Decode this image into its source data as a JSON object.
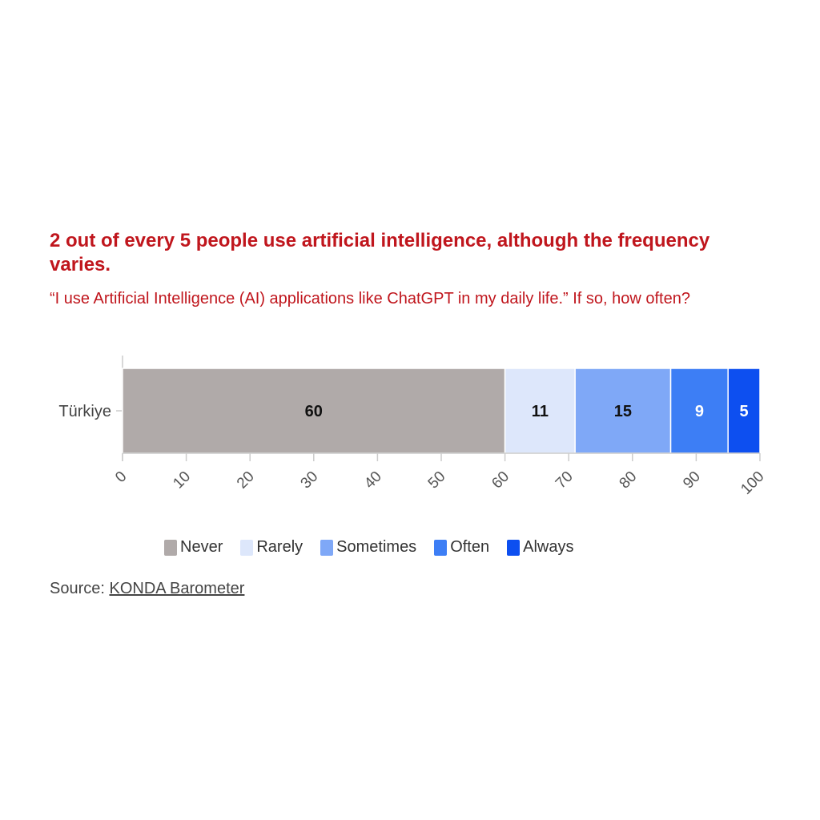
{
  "title": "2 out of every 5 people use artificial intelligence, although the frequency varies.",
  "subtitle": "“I use Artificial Intelligence (AI) applications like ChatGPT in my daily life.” If so, how often?",
  "source": {
    "prefix": "Source: ",
    "link_label": "KONDA Barometer"
  },
  "chart_data": {
    "type": "bar",
    "orientation": "horizontal",
    "stacked": true,
    "categories": [
      "Türkiye"
    ],
    "series": [
      {
        "name": "Never",
        "values": [
          60
        ],
        "color": "#b0aaa9",
        "label_color": "#111111"
      },
      {
        "name": "Rarely",
        "values": [
          11
        ],
        "color": "#dde7fb",
        "label_color": "#111111"
      },
      {
        "name": "Sometimes",
        "values": [
          15
        ],
        "color": "#7fa8f7",
        "label_color": "#111111"
      },
      {
        "name": "Often",
        "values": [
          9
        ],
        "color": "#3d7ef5",
        "label_color": "#ffffff"
      },
      {
        "name": "Always",
        "values": [
          5
        ],
        "color": "#0d4ff0",
        "label_color": "#ffffff"
      }
    ],
    "xlim": [
      0,
      100
    ],
    "xticks": [
      0,
      10,
      20,
      30,
      40,
      50,
      60,
      70,
      80,
      90,
      100
    ],
    "grid": false,
    "legend_position": "bottom"
  }
}
